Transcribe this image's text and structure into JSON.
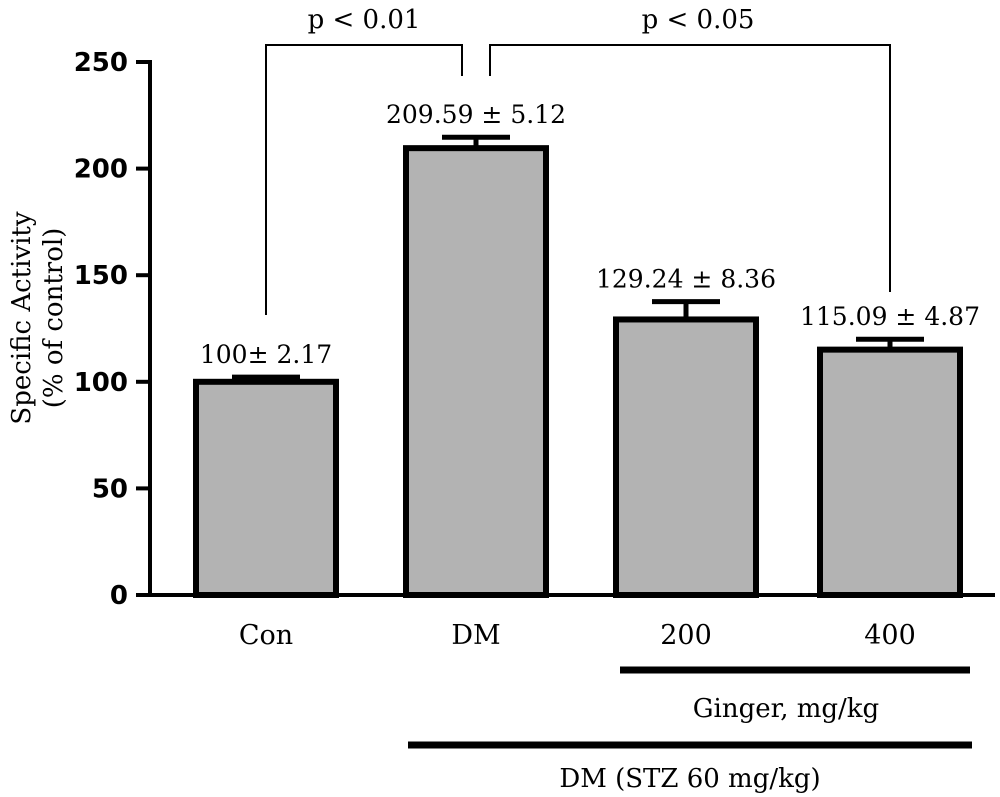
{
  "chart_data": {
    "type": "bar",
    "title": "",
    "xlabel": "",
    "ylabel_line1": "Specific Activity",
    "ylabel_line2": "(% of control)",
    "ylim": [
      0,
      250
    ],
    "yticks": [
      0,
      50,
      100,
      150,
      200,
      250
    ],
    "categories": [
      "Con",
      "DM",
      "200",
      "400"
    ],
    "values": [
      100,
      209.59,
      129.24,
      115.09
    ],
    "errors": [
      2.17,
      5.12,
      8.36,
      4.87
    ],
    "value_labels": [
      "100± 2.17",
      "209.59 ± 5.12",
      "129.24 ± 8.36",
      "115.09 ± 4.87"
    ],
    "bar_color": "#b3b3b3",
    "grid": false,
    "significance": [
      {
        "from": 0,
        "to": 1,
        "label": "p < 0.01"
      },
      {
        "from": 1,
        "to": 3,
        "label": "p < 0.05"
      }
    ],
    "group_bars": [
      {
        "from": 2,
        "to": 3,
        "label": "Ginger, mg/kg"
      },
      {
        "from": 1,
        "to": 3,
        "label": "DM (STZ 60 mg/kg)"
      }
    ]
  }
}
